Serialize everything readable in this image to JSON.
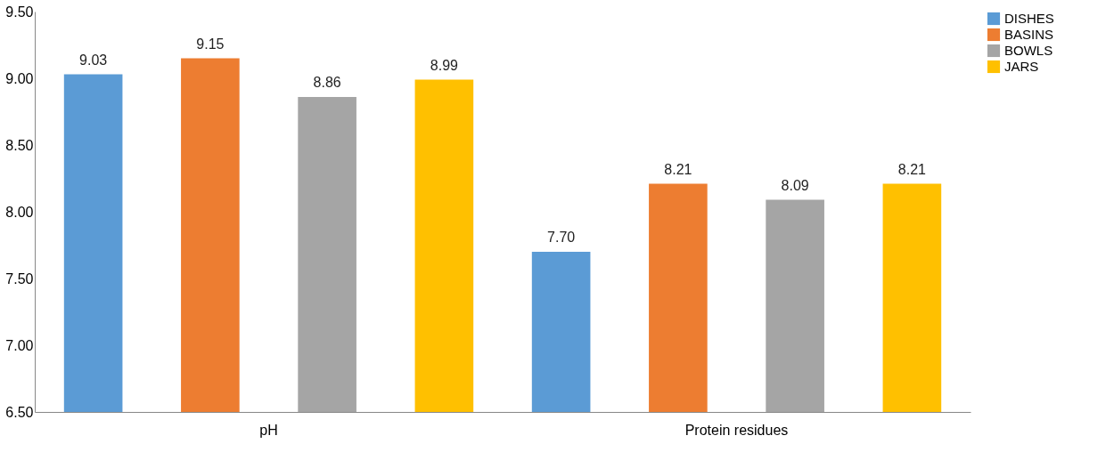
{
  "chart_data": {
    "type": "bar",
    "categories": [
      "pH",
      "Protein residues"
    ],
    "series": [
      {
        "name": "DISHES",
        "color": "#5b9bd5",
        "values": [
          9.03,
          7.7
        ],
        "value_labels": [
          "9.03",
          "7.70"
        ]
      },
      {
        "name": "BASINS",
        "color": "#ed7d31",
        "values": [
          9.15,
          8.21
        ],
        "value_labels": [
          "9.15",
          "8.21"
        ]
      },
      {
        "name": "BOWLS",
        "color": "#a5a5a5",
        "values": [
          8.86,
          8.09
        ],
        "value_labels": [
          "8.86",
          "8.09"
        ]
      },
      {
        "name": "JARS",
        "color": "#ffc000",
        "values": [
          8.99,
          8.21
        ],
        "value_labels": [
          "8.99",
          "8.21"
        ]
      }
    ],
    "ylim": [
      6.5,
      9.5
    ],
    "yticks": [
      {
        "value": 6.5,
        "label": "6.50"
      },
      {
        "value": 7,
        "label": "7.00"
      },
      {
        "value": 7.5,
        "label": "7.50"
      },
      {
        "value": 8,
        "label": "8.00"
      },
      {
        "value": 8.5,
        "label": "8.50"
      },
      {
        "value": 9,
        "label": "9.00"
      },
      {
        "value": 9.5,
        "label": "9.50"
      }
    ],
    "grid": false,
    "legend": "right"
  }
}
